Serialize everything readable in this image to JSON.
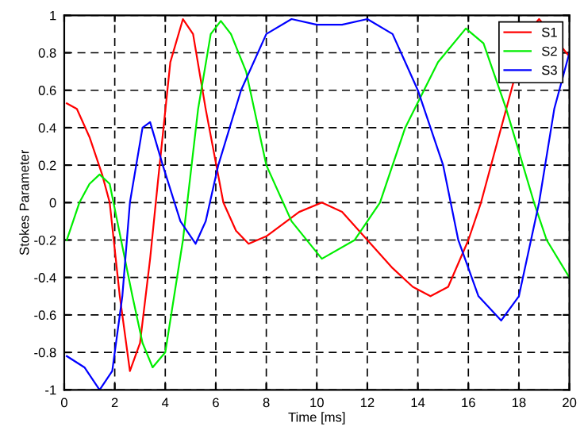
{
  "chart_data": {
    "type": "line",
    "xlabel": "Time [ms]",
    "ylabel": "Stokes Parameter",
    "xlim": [
      0,
      20
    ],
    "ylim": [
      -1,
      1
    ],
    "xticks": [
      0,
      2,
      4,
      6,
      8,
      10,
      12,
      14,
      16,
      18,
      20
    ],
    "yticks": [
      -1,
      -0.8,
      -0.6,
      -0.4,
      -0.2,
      0,
      0.2,
      0.4,
      0.6,
      0.8,
      1
    ],
    "grid": true,
    "legend": "top right",
    "line_style": "solid",
    "marker": "none",
    "series": [
      {
        "name": "S1",
        "color": "#ff0000",
        "x": [
          0.1,
          0.5,
          1.0,
          1.5,
          1.8,
          2.2,
          2.6,
          3.0,
          3.4,
          3.7,
          4.2,
          4.7,
          5.1,
          5.6,
          6.3,
          6.8,
          7.3,
          8.0,
          9.3,
          10.2,
          11.0,
          12.0,
          13.0,
          13.8,
          14.5,
          15.2,
          16.0,
          16.5,
          17.5,
          18.3,
          18.8,
          20.0
        ],
        "values": [
          0.53,
          0.5,
          0.35,
          0.15,
          0.0,
          -0.5,
          -0.9,
          -0.75,
          -0.3,
          0.1,
          0.75,
          0.98,
          0.9,
          0.5,
          0.0,
          -0.15,
          -0.22,
          -0.18,
          -0.05,
          0.0,
          -0.05,
          -0.2,
          -0.35,
          -0.45,
          -0.5,
          -0.45,
          -0.2,
          0.0,
          0.5,
          0.9,
          0.98,
          0.78
        ]
      },
      {
        "name": "S2",
        "color": "#00ee00",
        "x": [
          0.1,
          0.6,
          1.0,
          1.4,
          1.8,
          2.1,
          2.7,
          3.1,
          3.5,
          4.0,
          4.7,
          5.3,
          5.8,
          6.2,
          6.6,
          7.2,
          8.0,
          9.0,
          10.2,
          11.5,
          12.5,
          13.5,
          14.8,
          15.9,
          16.6,
          17.5,
          18.6,
          19.1,
          20.0
        ],
        "values": [
          -0.2,
          0.0,
          0.1,
          0.15,
          0.1,
          -0.1,
          -0.5,
          -0.75,
          -0.88,
          -0.8,
          -0.2,
          0.5,
          0.9,
          0.97,
          0.9,
          0.7,
          0.2,
          -0.1,
          -0.3,
          -0.2,
          0.0,
          0.4,
          0.75,
          0.93,
          0.85,
          0.5,
          0.0,
          -0.2,
          -0.4
        ]
      },
      {
        "name": "S3",
        "color": "#0000ff",
        "x": [
          0.1,
          0.8,
          1.4,
          1.9,
          2.3,
          2.6,
          3.1,
          3.4,
          3.9,
          4.6,
          5.2,
          5.6,
          6.1,
          7.0,
          8.0,
          9.0,
          10.0,
          11.0,
          12.0,
          13.0,
          14.0,
          15.0,
          15.6,
          16.4,
          17.3,
          18.0,
          18.8,
          19.4,
          20.0
        ],
        "values": [
          -0.82,
          -0.88,
          -1.0,
          -0.9,
          -0.5,
          0.0,
          0.4,
          0.43,
          0.2,
          -0.1,
          -0.22,
          -0.1,
          0.2,
          0.6,
          0.9,
          0.98,
          0.95,
          0.95,
          0.98,
          0.9,
          0.6,
          0.2,
          -0.2,
          -0.5,
          -0.63,
          -0.5,
          0.0,
          0.5,
          0.8
        ]
      }
    ]
  }
}
